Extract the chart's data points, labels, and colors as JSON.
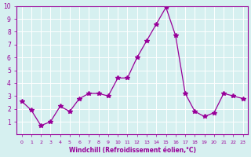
{
  "x": [
    0,
    1,
    2,
    3,
    4,
    5,
    6,
    7,
    8,
    9,
    10,
    11,
    12,
    13,
    14,
    15,
    16,
    17,
    18,
    19,
    20,
    21,
    22,
    23
  ],
  "y": [
    2.6,
    1.9,
    0.7,
    1.0,
    2.2,
    1.8,
    2.8,
    3.2,
    3.2,
    3.0,
    4.4,
    4.4,
    6.0,
    7.3,
    8.6,
    9.9,
    7.7,
    3.2,
    1.8,
    1.4,
    1.7,
    3.2,
    3.0,
    2.8
  ],
  "line_color": "#990099",
  "marker": "*",
  "marker_size": 4,
  "bg_color": "#d6f0f0",
  "grid_color": "#ffffff",
  "xlabel": "Windchill (Refroidissement éolien,°C)",
  "xlabel_color": "#990099",
  "tick_color": "#990099",
  "ylim": [
    0,
    10
  ],
  "xlim": [
    -0.5,
    23.5
  ],
  "yticks": [
    1,
    2,
    3,
    4,
    5,
    6,
    7,
    8,
    9,
    10
  ],
  "xticks": [
    0,
    1,
    2,
    3,
    4,
    5,
    6,
    7,
    8,
    9,
    10,
    11,
    12,
    13,
    14,
    15,
    16,
    17,
    18,
    19,
    20,
    21,
    22,
    23
  ]
}
